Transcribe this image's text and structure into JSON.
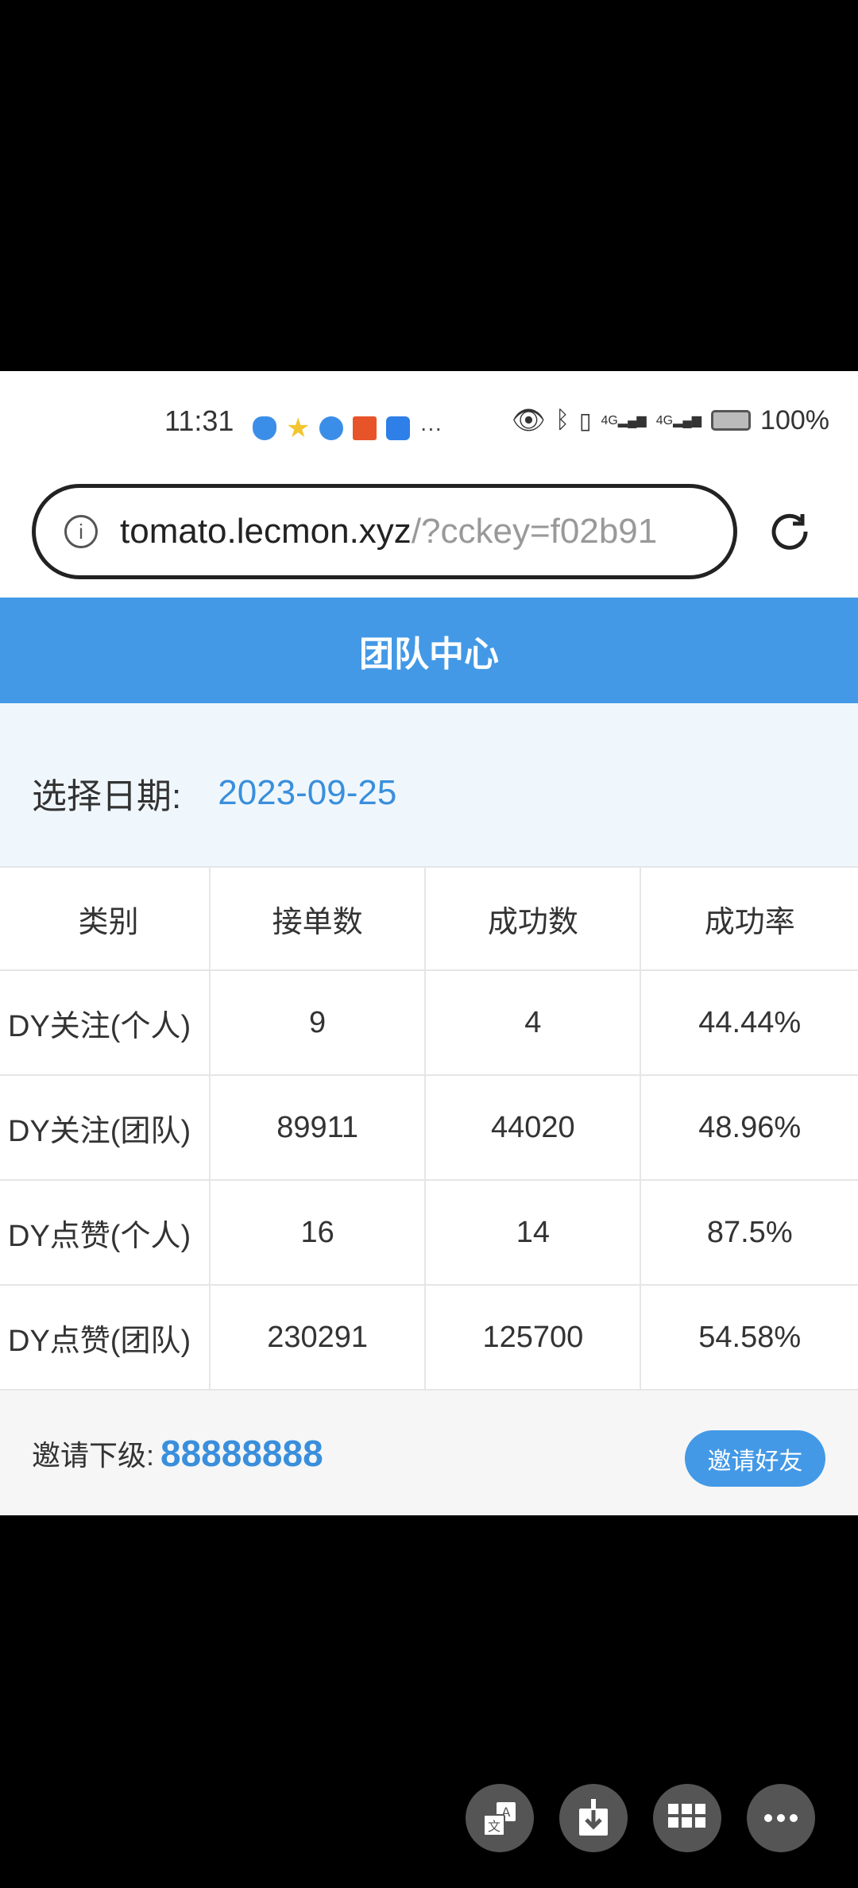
{
  "status_bar": {
    "time": "11:31",
    "battery": "100%",
    "network": [
      "4G",
      "4G"
    ]
  },
  "browser": {
    "url_host": "tomato.lecmon.xyz",
    "url_rest": "/?cckey=f02b91",
    "info_icon": "info-icon",
    "reload_icon": "reload-icon"
  },
  "page": {
    "title": "团队中心",
    "date_label": "选择日期:",
    "date_value": "2023-09-25"
  },
  "table": {
    "headers": [
      "类别",
      "接单数",
      "成功数",
      "成功率"
    ],
    "rows": [
      [
        "DY关注(个人)",
        "9",
        "4",
        "44.44%"
      ],
      [
        "DY关注(团队)",
        "89911",
        "44020",
        "48.96%"
      ],
      [
        "DY点赞(个人)",
        "16",
        "14",
        "87.5%"
      ],
      [
        "DY点赞(团队)",
        "230291",
        "125700",
        "54.58%"
      ]
    ]
  },
  "footer": {
    "invite_label": "邀请下级:",
    "invite_code": "88888888",
    "invite_button": "邀请好友"
  },
  "overlay_buttons": [
    "translate-icon",
    "download-icon",
    "grid-icon",
    "more-icon"
  ],
  "colors": {
    "accent": "#4399e6",
    "date_bg": "#f0f7fc"
  }
}
